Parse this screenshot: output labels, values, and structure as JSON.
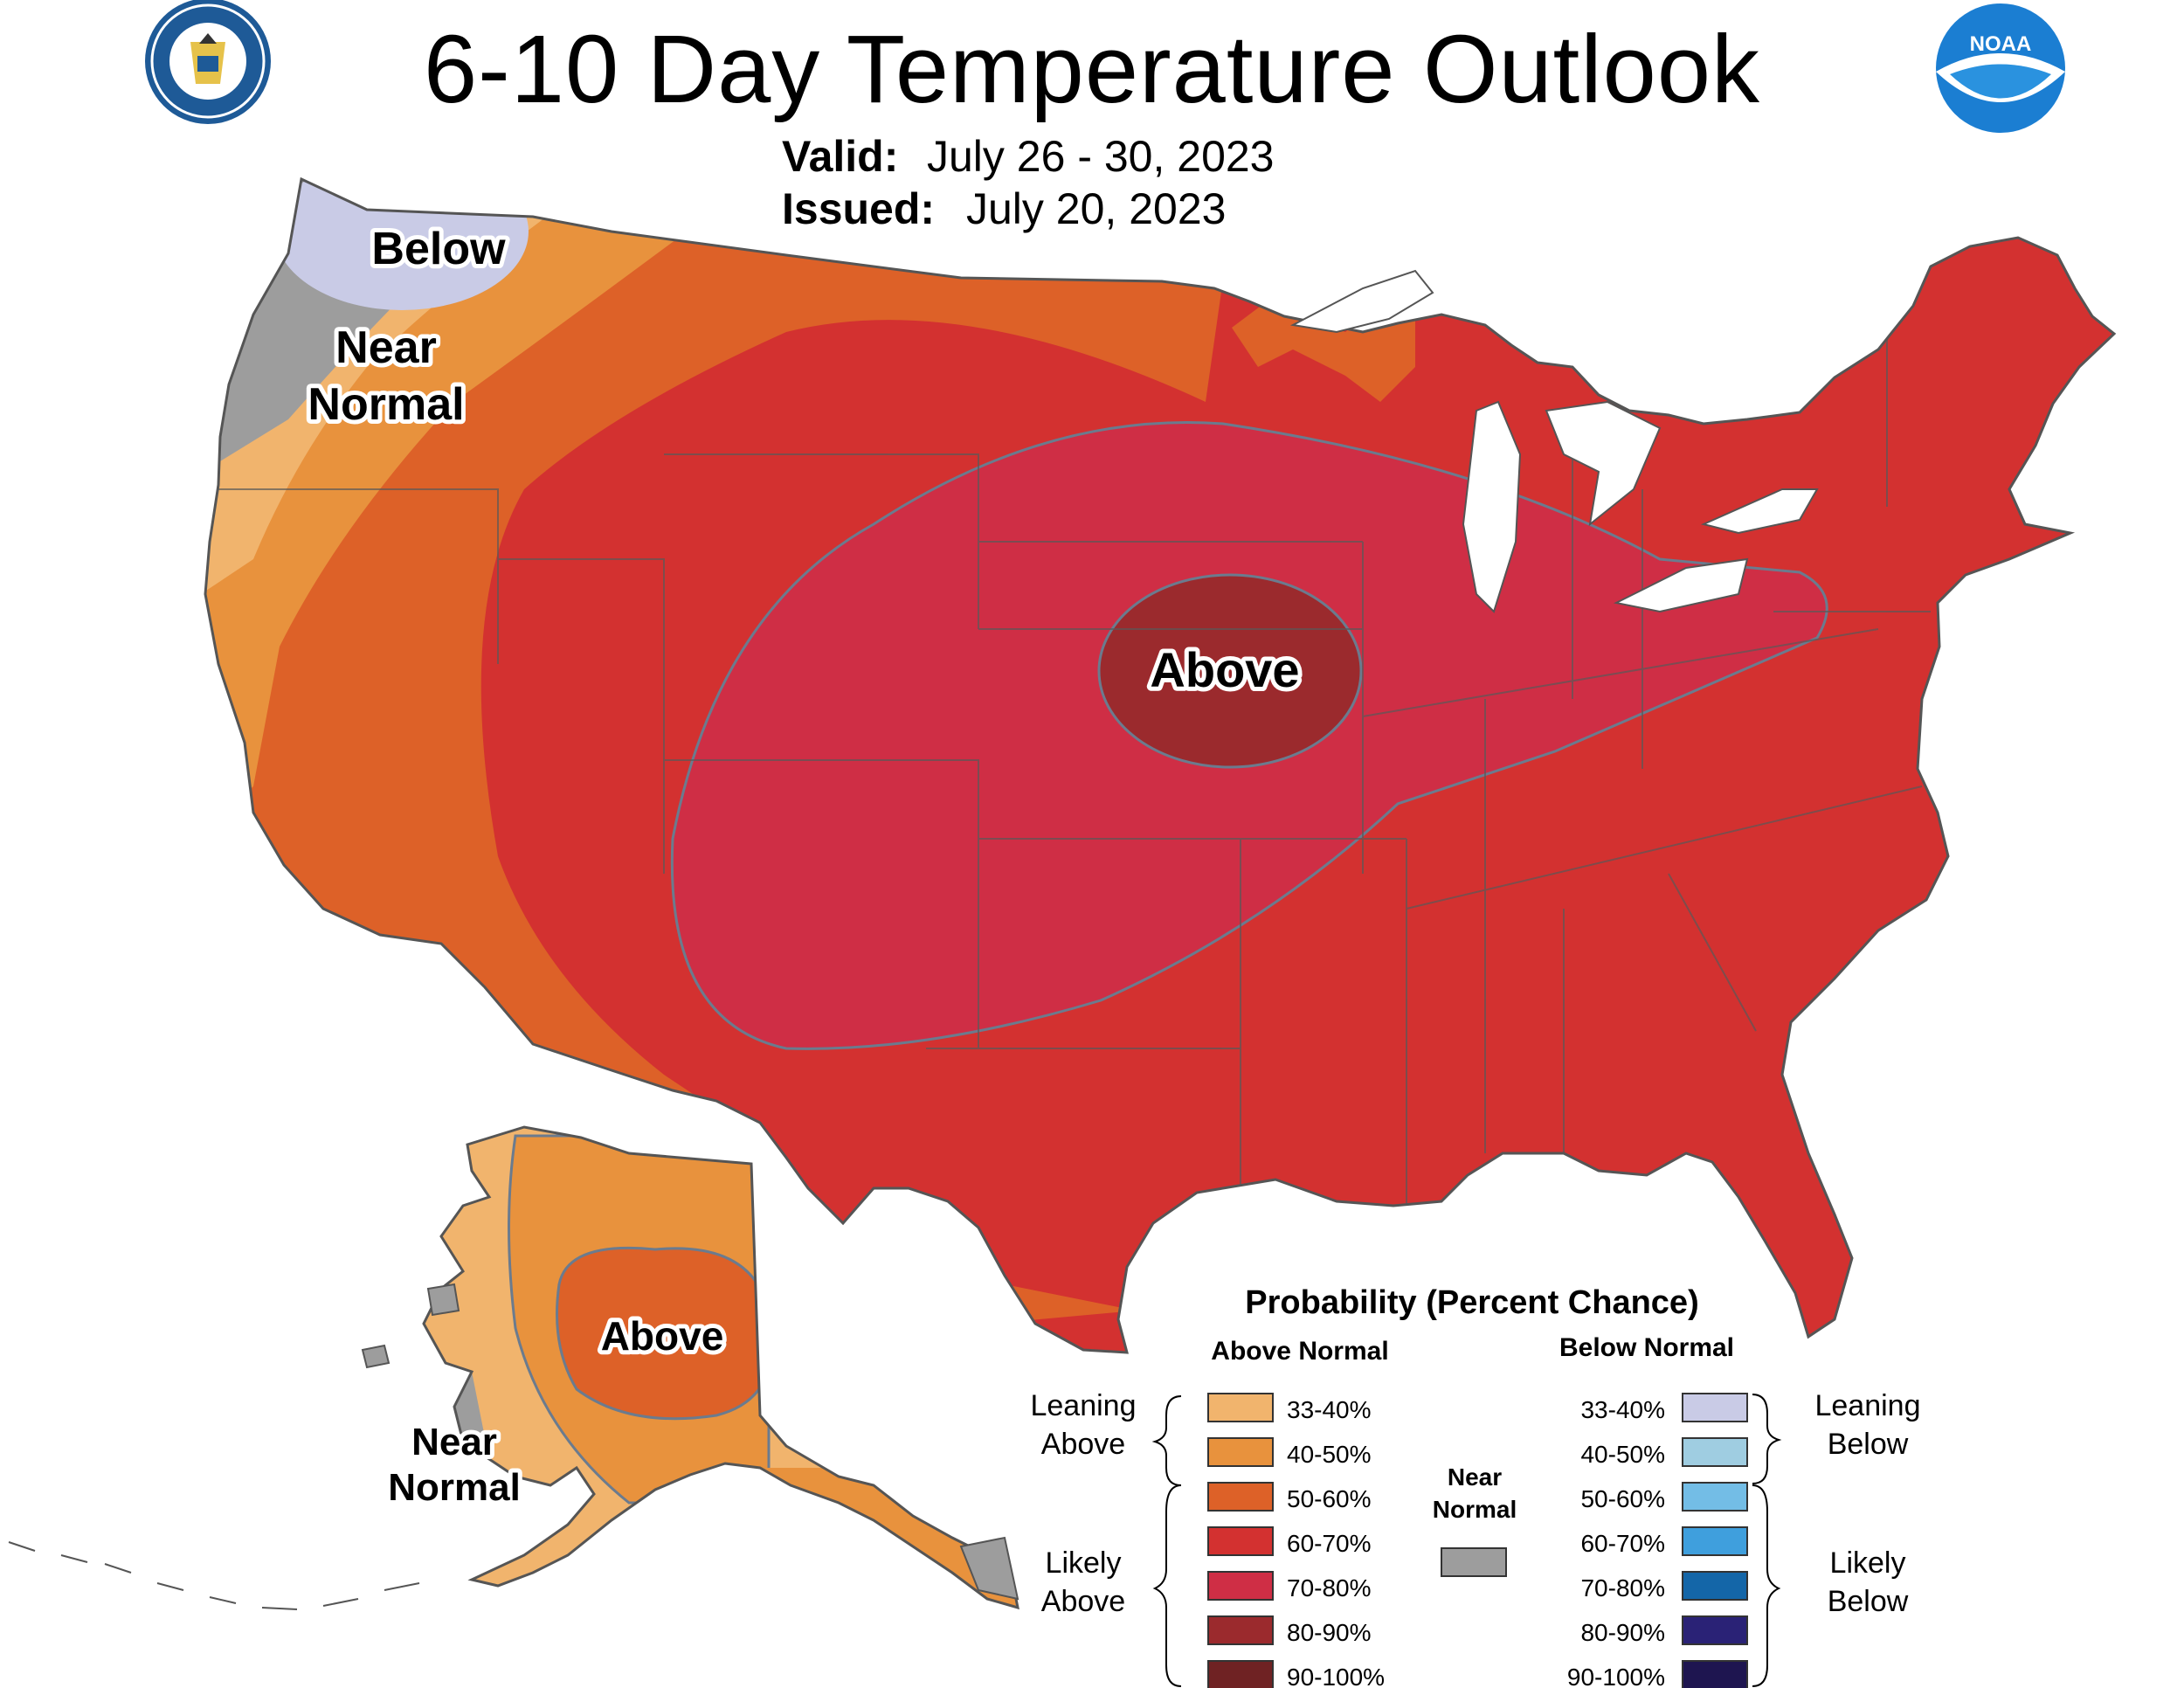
{
  "title": "6-10 Day Temperature Outlook",
  "valid": {
    "label": "Valid:",
    "value": "July 26 - 30, 2023"
  },
  "issued": {
    "label": "Issued:",
    "value": "July 20, 2023"
  },
  "logos": {
    "left": "department-of-commerce-seal",
    "right": "noaa-logo",
    "right_text": "NOAA"
  },
  "map_labels": {
    "below": "Below",
    "near_normal_line1": "Near",
    "near_normal_line2": "Normal",
    "above_conus": "Above",
    "above_alaska": "Above",
    "ak_near_line1": "Near",
    "ak_near_line2": "Normal"
  },
  "legend": {
    "title": "Probability (Percent Chance)",
    "above_header": "Above Normal",
    "below_header": "Below Normal",
    "leaning_above": [
      "Leaning",
      "Above"
    ],
    "likely_above": [
      "Likely",
      "Above"
    ],
    "leaning_below": [
      "Leaning",
      "Below"
    ],
    "likely_below": [
      "Likely",
      "Below"
    ],
    "near_normal": [
      "Near",
      "Normal"
    ],
    "near_normal_color": "#9d9d9d",
    "above": [
      {
        "label": "33-40%",
        "color": "#f1b46d"
      },
      {
        "label": "40-50%",
        "color": "#e8923d"
      },
      {
        "label": "50-60%",
        "color": "#dd6128"
      },
      {
        "label": "60-70%",
        "color": "#d33130"
      },
      {
        "label": "70-80%",
        "color": "#cf2e45"
      },
      {
        "label": "80-90%",
        "color": "#9b2a2d"
      },
      {
        "label": "90-100%",
        "color": "#6f2223"
      }
    ],
    "below": [
      {
        "label": "33-40%",
        "color": "#c9cbe6"
      },
      {
        "label": "40-50%",
        "color": "#9fcde1"
      },
      {
        "label": "50-60%",
        "color": "#73bde6"
      },
      {
        "label": "60-70%",
        "color": "#3f9fdd"
      },
      {
        "label": "70-80%",
        "color": "#1466a8"
      },
      {
        "label": "80-90%",
        "color": "#2a2276"
      },
      {
        "label": "90-100%",
        "color": "#1e1550"
      }
    ]
  }
}
